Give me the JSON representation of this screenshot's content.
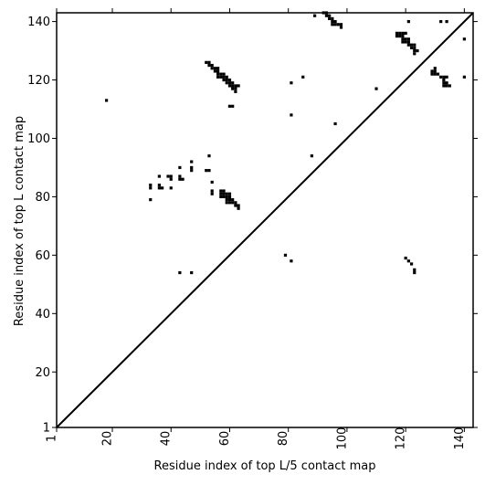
{
  "chart_data": {
    "type": "heatmap",
    "title": "",
    "xlabel": "Residue index of top L/5 contact map",
    "ylabel": "Residue index of top L contact map",
    "xlim": [
      1,
      143
    ],
    "ylim": [
      1,
      143
    ],
    "x_ticks": [
      "1",
      "20",
      "40",
      "60",
      "80",
      "100",
      "120",
      "140"
    ],
    "x_tick_values": [
      1,
      20,
      40,
      60,
      80,
      100,
      120,
      140
    ],
    "y_ticks": [
      "1",
      "20",
      "40",
      "60",
      "80",
      "100",
      "120",
      "140"
    ],
    "y_tick_values": [
      1,
      20,
      40,
      60,
      80,
      100,
      120,
      140
    ],
    "diagonal": true,
    "cell_color": "#000000",
    "background_color": "#ffffff",
    "contacts": [
      [
        18,
        113
      ],
      [
        33,
        79
      ],
      [
        33,
        83
      ],
      [
        33,
        84
      ],
      [
        36,
        83
      ],
      [
        36,
        84
      ],
      [
        36,
        87
      ],
      [
        37,
        83
      ],
      [
        39,
        87
      ],
      [
        40,
        83
      ],
      [
        40,
        86
      ],
      [
        40,
        87
      ],
      [
        43,
        86
      ],
      [
        43,
        87
      ],
      [
        43,
        90
      ],
      [
        44,
        86
      ],
      [
        47,
        89
      ],
      [
        47,
        90
      ],
      [
        47,
        92
      ],
      [
        52,
        89
      ],
      [
        53,
        89
      ],
      [
        53,
        94
      ],
      [
        54,
        81
      ],
      [
        54,
        82
      ],
      [
        54,
        85
      ],
      [
        57,
        80
      ],
      [
        57,
        81
      ],
      [
        57,
        82
      ],
      [
        58,
        80
      ],
      [
        58,
        81
      ],
      [
        58,
        82
      ],
      [
        59,
        78
      ],
      [
        59,
        79
      ],
      [
        59,
        80
      ],
      [
        59,
        81
      ],
      [
        60,
        78
      ],
      [
        60,
        79
      ],
      [
        60,
        80
      ],
      [
        60,
        81
      ],
      [
        61,
        78
      ],
      [
        61,
        79
      ],
      [
        62,
        77
      ],
      [
        62,
        78
      ],
      [
        63,
        76
      ],
      [
        63,
        77
      ],
      [
        52,
        126
      ],
      [
        53,
        126
      ],
      [
        53,
        125
      ],
      [
        54,
        125
      ],
      [
        54,
        124
      ],
      [
        55,
        124
      ],
      [
        55,
        123
      ],
      [
        56,
        124
      ],
      [
        56,
        123
      ],
      [
        56,
        122
      ],
      [
        56,
        121
      ],
      [
        57,
        122
      ],
      [
        57,
        121
      ],
      [
        58,
        122
      ],
      [
        58,
        121
      ],
      [
        58,
        120
      ],
      [
        59,
        121
      ],
      [
        59,
        120
      ],
      [
        59,
        119
      ],
      [
        60,
        120
      ],
      [
        60,
        119
      ],
      [
        60,
        118
      ],
      [
        61,
        119
      ],
      [
        61,
        118
      ],
      [
        61,
        117
      ],
      [
        62,
        118
      ],
      [
        62,
        117
      ],
      [
        62,
        116
      ],
      [
        63,
        118
      ],
      [
        60,
        111
      ],
      [
        61,
        111
      ],
      [
        43,
        54
      ],
      [
        47,
        54
      ],
      [
        79,
        60
      ],
      [
        81,
        58
      ],
      [
        81,
        108
      ],
      [
        81,
        119
      ],
      [
        85,
        121
      ],
      [
        88,
        94
      ],
      [
        89,
        142
      ],
      [
        92,
        143
      ],
      [
        93,
        143
      ],
      [
        93,
        142
      ],
      [
        94,
        142
      ],
      [
        94,
        141
      ],
      [
        95,
        141
      ],
      [
        95,
        140
      ],
      [
        95,
        139
      ],
      [
        96,
        139
      ],
      [
        96,
        140
      ],
      [
        97,
        139
      ],
      [
        98,
        139
      ],
      [
        98,
        138
      ],
      [
        96,
        105
      ],
      [
        110,
        117
      ],
      [
        117,
        136
      ],
      [
        117,
        135
      ],
      [
        118,
        136
      ],
      [
        118,
        135
      ],
      [
        119,
        136
      ],
      [
        119,
        135
      ],
      [
        119,
        134
      ],
      [
        119,
        133
      ],
      [
        120,
        136
      ],
      [
        120,
        134
      ],
      [
        120,
        133
      ],
      [
        121,
        134
      ],
      [
        121,
        133
      ],
      [
        121,
        132
      ],
      [
        122,
        132
      ],
      [
        122,
        131
      ],
      [
        123,
        132
      ],
      [
        123,
        131
      ],
      [
        123,
        130
      ],
      [
        123,
        129
      ],
      [
        124,
        130
      ],
      [
        121,
        140
      ],
      [
        120,
        59
      ],
      [
        121,
        58
      ],
      [
        122,
        57
      ],
      [
        123,
        55
      ],
      [
        123,
        54
      ],
      [
        129,
        123
      ],
      [
        129,
        122
      ],
      [
        130,
        124
      ],
      [
        130,
        123
      ],
      [
        130,
        122
      ],
      [
        131,
        122
      ],
      [
        132,
        121
      ],
      [
        133,
        121
      ],
      [
        133,
        120
      ],
      [
        133,
        119
      ],
      [
        133,
        118
      ],
      [
        134,
        121
      ],
      [
        134,
        119
      ],
      [
        134,
        118
      ],
      [
        135,
        118
      ],
      [
        132,
        140
      ],
      [
        134,
        140
      ],
      [
        140,
        134
      ],
      [
        140,
        121
      ]
    ]
  }
}
